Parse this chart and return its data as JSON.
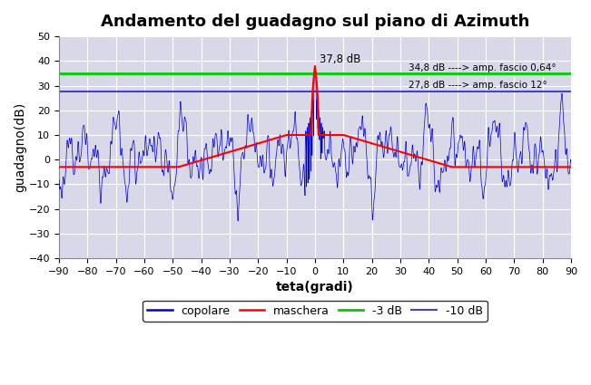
{
  "title": "Andamento del guadagno sul piano di Azimuth",
  "xlabel": "teta(gradi)",
  "ylabel": "guadagno(dB)",
  "xlim": [
    -90,
    90
  ],
  "ylim": [
    -40,
    50
  ],
  "xticks": [
    -90,
    -80,
    -70,
    -60,
    -50,
    -40,
    -30,
    -20,
    -10,
    0,
    10,
    20,
    30,
    40,
    50,
    60,
    70,
    80,
    90
  ],
  "yticks": [
    -40,
    -30,
    -20,
    -10,
    0,
    10,
    20,
    30,
    40,
    50
  ],
  "line_green_y": 34.8,
  "line_blue_y": 27.8,
  "peak_value": 37.8,
  "peak_label": "37,8 dB",
  "annotation_green": "34,8 dB ----> amp. fascio 0,64°",
  "annotation_blue": "27,8 dB ----> amp. fascio 12°",
  "color_copolare": "#0000CD",
  "color_maschera": "#FF0000",
  "color_green": "#00CC00",
  "color_blue_ref": "#4444BB",
  "background_color": "#D8D8E8",
  "grid_color": "#FFFFFF",
  "title_fontsize": 13,
  "axis_label_fontsize": 10,
  "tick_fontsize": 8
}
